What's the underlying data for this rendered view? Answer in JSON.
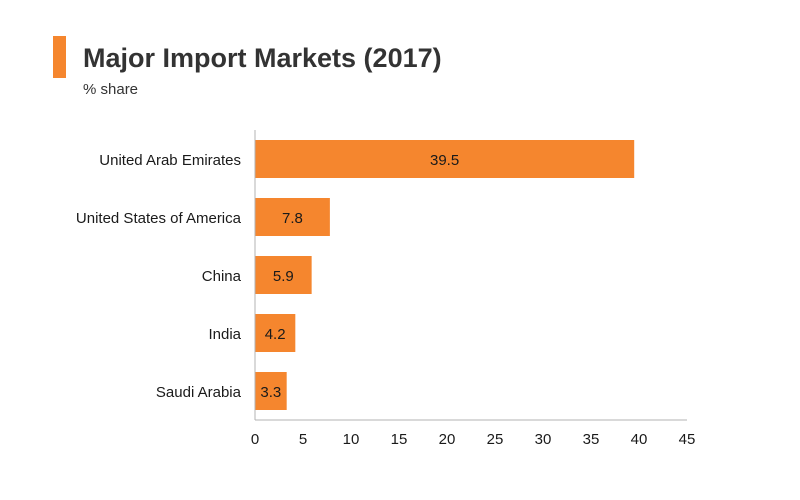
{
  "header": {
    "title": "Major Import Markets (2017)",
    "subtitle": "% share",
    "accent_color": "#f5862e"
  },
  "chart_data": {
    "type": "bar",
    "orientation": "horizontal",
    "title": "Major Import Markets (2017)",
    "subtitle": "% share",
    "categories": [
      "United Arab Emirates",
      "United States of America",
      "China",
      "India",
      "Saudi Arabia"
    ],
    "values": [
      39.5,
      7.8,
      5.9,
      4.2,
      3.3
    ],
    "data_labels": [
      "39.5",
      "7.8",
      "5.9",
      "4.2",
      "3.3"
    ],
    "xlim": [
      0,
      45
    ],
    "x_ticks": [
      0,
      5,
      10,
      15,
      20,
      25,
      30,
      35,
      40,
      45
    ],
    "grid": false,
    "legend": "none",
    "bar_color": "#f5862e",
    "axis_color": "#b3b3b3",
    "text_color": "#1a1a1a"
  }
}
